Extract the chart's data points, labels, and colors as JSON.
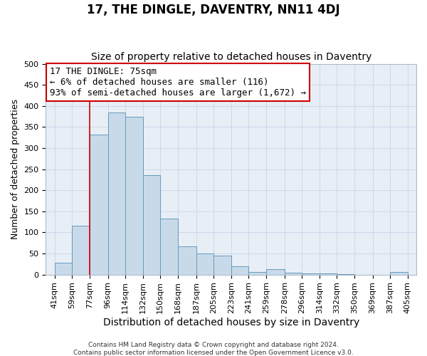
{
  "title": "17, THE DINGLE, DAVENTRY, NN11 4DJ",
  "subtitle": "Size of property relative to detached houses in Daventry",
  "xlabel": "Distribution of detached houses by size in Daventry",
  "ylabel": "Number of detached properties",
  "bar_left_edges": [
    41,
    59,
    77,
    96,
    114,
    132,
    150,
    168,
    187,
    205,
    223,
    241,
    259,
    278,
    296,
    314,
    332,
    350,
    369,
    387
  ],
  "bar_heights": [
    28,
    116,
    332,
    385,
    374,
    236,
    133,
    67,
    50,
    45,
    20,
    6,
    13,
    5,
    2,
    2,
    1,
    0,
    0,
    6
  ],
  "bar_widths": [
    18,
    18,
    19,
    18,
    18,
    18,
    18,
    19,
    18,
    18,
    18,
    18,
    19,
    18,
    18,
    18,
    18,
    19,
    18,
    18
  ],
  "bar_color": "#c8daea",
  "bar_edge_color": "#6699bb",
  "x_tick_labels": [
    "41sqm",
    "59sqm",
    "77sqm",
    "96sqm",
    "114sqm",
    "132sqm",
    "150sqm",
    "168sqm",
    "187sqm",
    "205sqm",
    "223sqm",
    "241sqm",
    "259sqm",
    "278sqm",
    "296sqm",
    "314sqm",
    "332sqm",
    "350sqm",
    "369sqm",
    "387sqm",
    "405sqm"
  ],
  "x_tick_positions": [
    41,
    59,
    77,
    96,
    114,
    132,
    150,
    168,
    187,
    205,
    223,
    241,
    259,
    278,
    296,
    314,
    332,
    350,
    369,
    387,
    405
  ],
  "ylim": [
    0,
    500
  ],
  "yticks": [
    0,
    50,
    100,
    150,
    200,
    250,
    300,
    350,
    400,
    450,
    500
  ],
  "xlim_left": 32,
  "xlim_right": 414,
  "marker_x": 77,
  "marker_color": "#cc0000",
  "annotation_title": "17 THE DINGLE: 75sqm",
  "annotation_line1": "← 6% of detached houses are smaller (116)",
  "annotation_line2": "93% of semi-detached houses are larger (1,672) →",
  "annotation_box_color": "#ffffff",
  "annotation_box_edgecolor": "#cc0000",
  "grid_color": "#c8d4e8",
  "background_color": "#e8eef6",
  "footer_line1": "Contains HM Land Registry data © Crown copyright and database right 2024.",
  "footer_line2": "Contains public sector information licensed under the Open Government Licence v3.0.",
  "title_fontsize": 12,
  "subtitle_fontsize": 10,
  "xlabel_fontsize": 10,
  "ylabel_fontsize": 9,
  "tick_fontsize": 8,
  "annotation_fontsize": 9,
  "footer_fontsize": 6.5
}
